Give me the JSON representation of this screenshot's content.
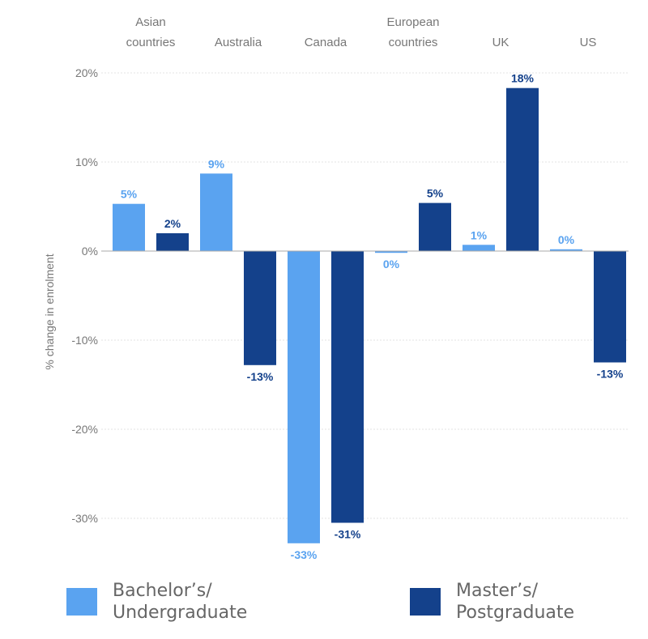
{
  "chart_data": {
    "type": "bar",
    "categories": [
      [
        "Asian",
        "countries"
      ],
      [
        "Australia"
      ],
      [
        "Canada"
      ],
      [
        "European",
        "countries"
      ],
      [
        "UK"
      ],
      [
        "US"
      ]
    ],
    "series": [
      {
        "name": "Bachelor’s/\nUndergraduate",
        "color": "#5aa3f0",
        "values": [
          5.3,
          8.7,
          -32.8,
          -0.2,
          0.7,
          0.2
        ],
        "labels": [
          "5%",
          "9%",
          "-33%",
          "0%",
          "1%",
          "0%"
        ]
      },
      {
        "name": "Master’s/\nPostgraduate",
        "color": "#14418b",
        "values": [
          2.0,
          -12.8,
          -30.5,
          5.4,
          18.3,
          -12.5
        ],
        "labels": [
          "2%",
          "-13%",
          "-31%",
          "5%",
          "18%",
          "-13%"
        ]
      }
    ],
    "ylabel": "% change in enrolment",
    "yticks": [
      20,
      10,
      0,
      -10,
      -20,
      -30
    ],
    "ytick_labels": [
      "20%",
      "10%",
      "0%",
      "-10%",
      "-20%",
      "-30%"
    ],
    "ylim": [
      -34,
      20
    ],
    "grid": true,
    "legend_position": "bottom"
  }
}
